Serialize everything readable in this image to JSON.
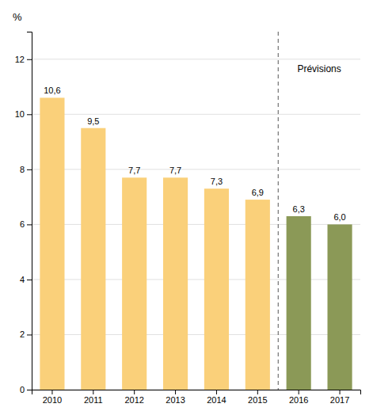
{
  "chart_data": {
    "type": "bar",
    "ylabel": "%",
    "categories": [
      "2010",
      "2011",
      "2012",
      "2013",
      "2014",
      "2015",
      "2016",
      "2017"
    ],
    "values": [
      10.6,
      9.5,
      7.7,
      7.7,
      7.3,
      6.9,
      6.3,
      6.0
    ],
    "value_labels": [
      "10,6",
      "9,5",
      "7,7",
      "7,7",
      "7,3",
      "6,9",
      "6,3",
      "6,0"
    ],
    "colors": [
      "#FAD07A",
      "#FAD07A",
      "#FAD07A",
      "#FAD07A",
      "#FAD07A",
      "#FAD07A",
      "#8B9957",
      "#8B9957"
    ],
    "data_labels": true,
    "ylim": [
      0,
      13
    ],
    "yticks": [
      0,
      2,
      4,
      6,
      8,
      10,
      12
    ],
    "grid": true,
    "annotations": [
      {
        "type": "vline",
        "x": 5.5
      },
      {
        "type": "text",
        "text": "Prévisions",
        "x": 6.5,
        "y": 11.8
      }
    ]
  }
}
